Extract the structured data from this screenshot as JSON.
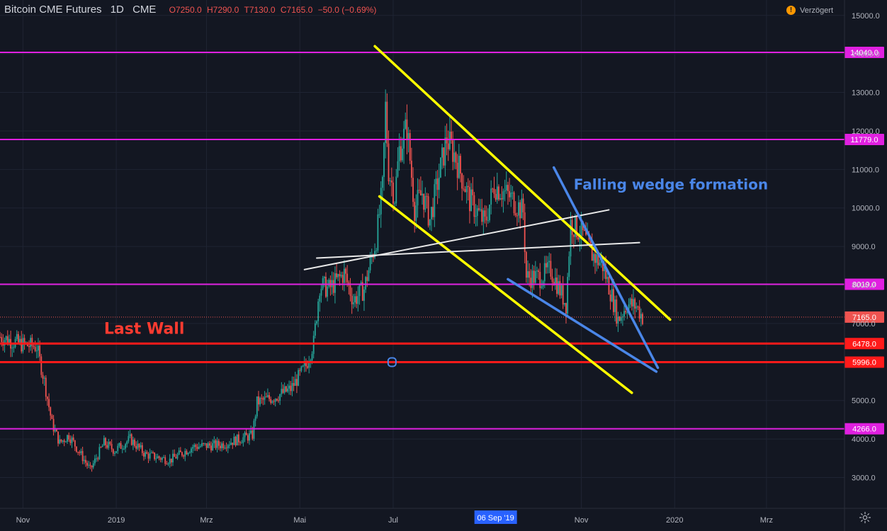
{
  "header": {
    "symbol": "Bitcoin CME Futures",
    "interval": "1D",
    "exchange": "CME",
    "open": "O7250.0",
    "high": "H7290.0",
    "low": "T7130.0",
    "close": "C7165.0",
    "change": "−50.0 (−0.69%)"
  },
  "delay_label": "Verzögert",
  "colors": {
    "background": "#131722",
    "up": "#26a69a",
    "down": "#ef5350",
    "level_magenta": "#e020e0",
    "level_red": "#ff1a1a",
    "trend_yellow": "#ffff00",
    "trend_blue": "#4a86e8",
    "trend_white": "#e8e8e8",
    "annotation_red": "#ff3b30",
    "annotation_blue": "#4a86e8"
  },
  "chart_data": {
    "type": "candlestick",
    "y_axis": {
      "ticks": [
        15000,
        14000,
        13000,
        12000,
        11000,
        10000,
        9000,
        8000,
        7000,
        5000,
        4000,
        3000
      ],
      "tick_labels": [
        "15000.0",
        "14000.0",
        "13000.0",
        "12000.0",
        "11000.0",
        "10000.0",
        "9000.0",
        "8000.0",
        "7000.0",
        "5000.0",
        "4000.0",
        "3000.0"
      ],
      "range": [
        2200,
        15400
      ]
    },
    "x_axis": {
      "range": [
        "2018-10-17",
        "2020-04-21"
      ],
      "ticks": [
        {
          "date": "2018-11-01",
          "label": "Nov"
        },
        {
          "date": "2019-01-01",
          "label": "2019"
        },
        {
          "date": "2019-03-01",
          "label": "Mrz"
        },
        {
          "date": "2019-05-01",
          "label": "Mai"
        },
        {
          "date": "2019-07-01",
          "label": "Jul"
        },
        {
          "date": "2019-11-01",
          "label": "Nov"
        },
        {
          "date": "2020-01-01",
          "label": "2020"
        },
        {
          "date": "2020-03-01",
          "label": "Mrz"
        }
      ],
      "crosshair_label": {
        "date": "2019-09-06",
        "text": "06 Sep '19"
      }
    },
    "price_path": [
      [
        "2018-10-17",
        6650
      ],
      [
        "2018-11-01",
        6450
      ],
      [
        "2018-11-10",
        6400
      ],
      [
        "2018-11-15",
        5500
      ],
      [
        "2018-11-20",
        4400
      ],
      [
        "2018-11-25",
        3900
      ],
      [
        "2018-12-01",
        4100
      ],
      [
        "2018-12-15",
        3200
      ],
      [
        "2018-12-24",
        3900
      ],
      [
        "2018-12-31",
        3700
      ],
      [
        "2019-01-10",
        4000
      ],
      [
        "2019-01-20",
        3600
      ],
      [
        "2019-02-05",
        3450
      ],
      [
        "2019-02-20",
        3800
      ],
      [
        "2019-03-10",
        3850
      ],
      [
        "2019-03-31",
        4100
      ],
      [
        "2019-04-03",
        4950
      ],
      [
        "2019-04-15",
        5100
      ],
      [
        "2019-04-25",
        5300
      ],
      [
        "2019-05-05",
        5900
      ],
      [
        "2019-05-10",
        6500
      ],
      [
        "2019-05-14",
        8000
      ],
      [
        "2019-05-20",
        7900
      ],
      [
        "2019-05-30",
        8300
      ],
      [
        "2019-06-05",
        7600
      ],
      [
        "2019-06-12",
        7900
      ],
      [
        "2019-06-20",
        9200
      ],
      [
        "2019-06-24",
        10500
      ],
      [
        "2019-06-26",
        12600
      ],
      [
        "2019-06-28",
        11000
      ],
      [
        "2019-07-02",
        10300
      ],
      [
        "2019-07-05",
        11500
      ],
      [
        "2019-07-10",
        12100
      ],
      [
        "2019-07-15",
        10000
      ],
      [
        "2019-07-20",
        10400
      ],
      [
        "2019-07-25",
        9700
      ],
      [
        "2019-08-05",
        11800
      ],
      [
        "2019-08-10",
        11400
      ],
      [
        "2019-08-20",
        10200
      ],
      [
        "2019-08-30",
        9600
      ],
      [
        "2019-09-05",
        10600
      ],
      [
        "2019-09-15",
        10300
      ],
      [
        "2019-09-24",
        9900
      ],
      [
        "2019-09-26",
        8200
      ],
      [
        "2019-10-05",
        8200
      ],
      [
        "2019-10-12",
        8400
      ],
      [
        "2019-10-22",
        7500
      ],
      [
        "2019-10-25",
        9600
      ],
      [
        "2019-11-02",
        9300
      ],
      [
        "2019-11-08",
        8800
      ],
      [
        "2019-11-15",
        8500
      ],
      [
        "2019-11-21",
        7700
      ],
      [
        "2019-11-25",
        7100
      ],
      [
        "2019-12-01",
        7500
      ],
      [
        "2019-12-07",
        7450
      ],
      [
        "2019-12-11",
        7165
      ]
    ],
    "horizontal_levels": [
      {
        "price": 14040,
        "label": "14040.0",
        "color": "magenta"
      },
      {
        "price": 11779,
        "label": "11779.0",
        "color": "magenta"
      },
      {
        "price": 8019,
        "label": "8019.0",
        "color": "magenta"
      },
      {
        "price": 7165,
        "label": "7165.0",
        "color": "last"
      },
      {
        "price": 6478,
        "label": "6478.0",
        "color": "red"
      },
      {
        "price": 5996,
        "label": "5996.0",
        "color": "red"
      },
      {
        "price": 4266,
        "label": "4266.0",
        "color": "magenta"
      }
    ],
    "trendlines": [
      {
        "color": "yellow",
        "from": [
          "2019-06-19",
          14200
        ],
        "to": [
          "2019-12-29",
          7100
        ]
      },
      {
        "color": "yellow",
        "from": [
          "2019-06-22",
          10300
        ],
        "to": [
          "2019-12-04",
          5200
        ]
      },
      {
        "color": "white",
        "from": [
          "2019-05-04",
          8400
        ],
        "to": [
          "2019-11-19",
          9950
        ]
      },
      {
        "color": "white",
        "from": [
          "2019-05-12",
          8700
        ],
        "to": [
          "2019-12-09",
          9100
        ]
      },
      {
        "color": "blue",
        "from": [
          "2019-10-14",
          11050
        ],
        "to": [
          "2019-12-21",
          5850
        ]
      },
      {
        "color": "blue",
        "from": [
          "2019-09-14",
          8150
        ],
        "to": [
          "2019-12-20",
          5750
        ]
      }
    ],
    "annotations": [
      {
        "text": "Last Wall",
        "color": "red"
      },
      {
        "text": "Falling wedge formation",
        "color": "blue"
      }
    ]
  }
}
